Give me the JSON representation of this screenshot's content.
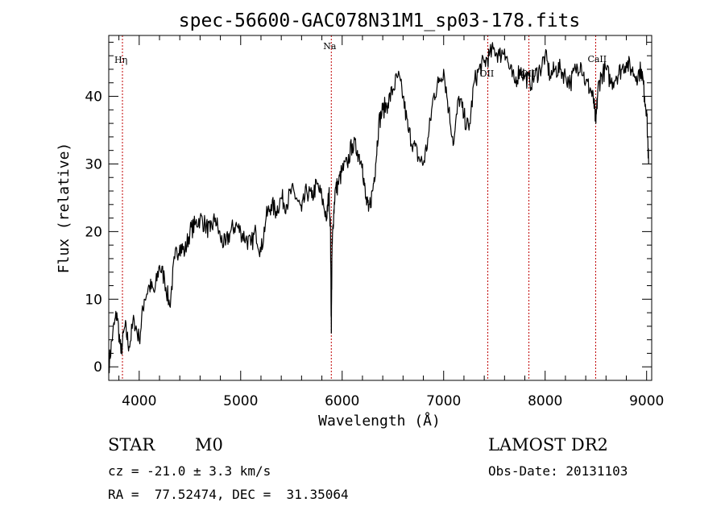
{
  "chart_data": {
    "type": "line",
    "title": "spec-56600-GAC078N31M1_sp03-178.fits",
    "xlabel": "Wavelength (Å)",
    "ylabel": "Flux (relative)",
    "xlim": [
      3700,
      9050
    ],
    "ylim": [
      -2,
      49
    ],
    "xticks": [
      4000,
      5000,
      6000,
      7000,
      8000,
      9000
    ],
    "yticks": [
      0,
      10,
      20,
      30,
      40
    ],
    "xtick_labels": [
      "4000",
      "5000",
      "6000",
      "7000",
      "8000",
      "9000"
    ],
    "ytick_labels": [
      "0",
      "10",
      "20",
      "30",
      "40"
    ],
    "grid": false,
    "spectrum": {
      "x": [
        3700,
        3740,
        3780,
        3820,
        3860,
        3900,
        3950,
        4000,
        4050,
        4100,
        4150,
        4200,
        4250,
        4300,
        4350,
        4400,
        4450,
        4500,
        4550,
        4600,
        4650,
        4700,
        4750,
        4800,
        4850,
        4900,
        4950,
        5000,
        5050,
        5100,
        5150,
        5200,
        5250,
        5300,
        5350,
        5400,
        5450,
        5500,
        5550,
        5600,
        5650,
        5700,
        5750,
        5800,
        5850,
        5870,
        5885,
        5893,
        5900,
        5910,
        5930,
        5960,
        6000,
        6050,
        6100,
        6150,
        6200,
        6230,
        6260,
        6300,
        6330,
        6360,
        6400,
        6450,
        6500,
        6550,
        6600,
        6650,
        6700,
        6750,
        6800,
        6850,
        6900,
        6950,
        7000,
        7050,
        7100,
        7150,
        7200,
        7250,
        7300,
        7350,
        7400,
        7450,
        7500,
        7550,
        7600,
        7650,
        7700,
        7750,
        7800,
        7850,
        7900,
        7950,
        8000,
        8050,
        8100,
        8150,
        8200,
        8250,
        8300,
        8350,
        8400,
        8450,
        8480,
        8500,
        8520,
        8550,
        8600,
        8650,
        8700,
        8750,
        8800,
        8850,
        8900,
        8950,
        8980,
        9000,
        9020
      ],
      "y": [
        0,
        5,
        8,
        2,
        6,
        3,
        7,
        4,
        10,
        12,
        11,
        15,
        13,
        9,
        16,
        18,
        17,
        20,
        21,
        22,
        21,
        20,
        22,
        19,
        18,
        20,
        21,
        20,
        19,
        18,
        20,
        17,
        22,
        24,
        23,
        25,
        24,
        26,
        25,
        23,
        26,
        25,
        27,
        25,
        22,
        26,
        20,
        5,
        17,
        21,
        26,
        27,
        29,
        30,
        33,
        32,
        30,
        25,
        23,
        26,
        30,
        36,
        38,
        39,
        41,
        43,
        40,
        35,
        33,
        31,
        30,
        34,
        40,
        42,
        44,
        38,
        33,
        40,
        37,
        35,
        42,
        44,
        45,
        46,
        47,
        46,
        47,
        44,
        42,
        44,
        43,
        42,
        43,
        44,
        46,
        43,
        44,
        44,
        43,
        42,
        44,
        45,
        42,
        41,
        39,
        36,
        41,
        43,
        44,
        42,
        43,
        44,
        45,
        44,
        43,
        44,
        40,
        38,
        30
      ]
    },
    "reference_lines": [
      {
        "label": "Hη",
        "x": 3835
      },
      {
        "label": "Na",
        "x": 5893
      },
      {
        "label": "OII",
        "x": 7435
      },
      {
        "label": "OII",
        "x": 7840
      },
      {
        "label": "CaII",
        "x": 8498
      }
    ],
    "line_colors": {
      "spectrum": "#000000",
      "reference": "#c00000",
      "axes": "#000000"
    }
  },
  "info": {
    "class_label": "STAR",
    "subclass": "M0",
    "cz_line": "cz = -21.0 ± 3.3 km/s",
    "coords_line": "RA =  77.52474, DEC =  31.35064",
    "survey": "LAMOST DR2",
    "obs_date_line": "Obs-Date: 20131103"
  }
}
